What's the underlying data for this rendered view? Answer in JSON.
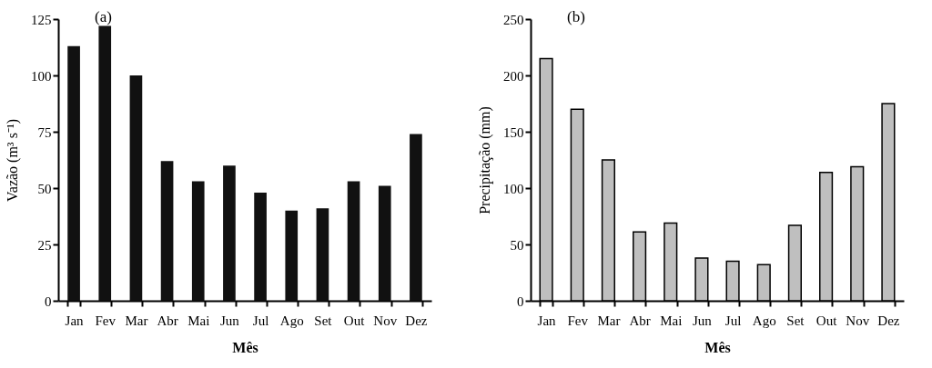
{
  "chart_data": [
    {
      "type": "bar",
      "title": "(a)",
      "xlabel": "Mês",
      "ylabel": "Vazão (m³ s⁻¹)",
      "categories": [
        "Jan",
        "Fev",
        "Mar",
        "Abr",
        "Mai",
        "Jun",
        "Jul",
        "Ago",
        "Set",
        "Out",
        "Nov",
        "Dez"
      ],
      "values": [
        113,
        122,
        100,
        62,
        53,
        60,
        48,
        40,
        41,
        53,
        51,
        74
      ],
      "color": "#111111",
      "ylim": [
        0,
        125
      ],
      "yticks": [
        0,
        25,
        50,
        75,
        100,
        125
      ],
      "grid": false
    },
    {
      "type": "bar",
      "title": "(b)",
      "xlabel": "Mês",
      "ylabel": "Precipitação (mm)",
      "categories": [
        "Jan",
        "Fev",
        "Mar",
        "Abr",
        "Mai",
        "Jun",
        "Jul",
        "Ago",
        "Set",
        "Out",
        "Nov",
        "Dez"
      ],
      "values": [
        215,
        170,
        125,
        61,
        69,
        38,
        35,
        32,
        67,
        114,
        119,
        175
      ],
      "color": "#bfbfbf",
      "ylim": [
        0,
        250
      ],
      "yticks": [
        0,
        50,
        100,
        150,
        200,
        250
      ],
      "grid": false
    }
  ]
}
